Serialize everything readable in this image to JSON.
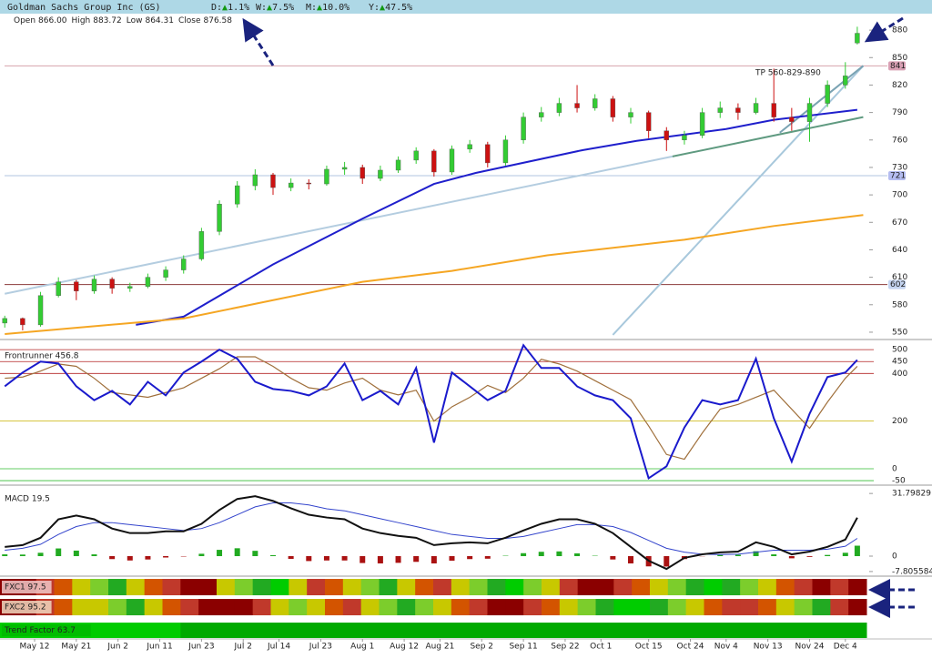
{
  "header": {
    "title": "Goldman Sachs Group Inc (GS)",
    "changes": [
      {
        "label": "D:",
        "arrow": "▲",
        "value": "1.1%"
      },
      {
        "label": "W:",
        "arrow": "▲",
        "value": "7.5%"
      },
      {
        "label": "M:",
        "arrow": "▲",
        "value": "10.0%"
      },
      {
        "label": "Y:",
        "arrow": "▲",
        "value": "47.5%"
      }
    ],
    "quote": [
      {
        "label": "Open",
        "value": "866.00"
      },
      {
        "label": "High",
        "value": "883.72"
      },
      {
        "label": "Low",
        "value": "864.31"
      },
      {
        "label": "Close",
        "value": "876.58"
      }
    ]
  },
  "chart_data": [
    {
      "type": "candlestick",
      "x": [
        0,
        3,
        6,
        9,
        12,
        15,
        18,
        21,
        24,
        27,
        30,
        33,
        36,
        39,
        42,
        45,
        48,
        51,
        54,
        57,
        60,
        63,
        66,
        69,
        72,
        75,
        78,
        81,
        84,
        87,
        90,
        93,
        96,
        99,
        102,
        105,
        108,
        111,
        114,
        117,
        120,
        123,
        126,
        129,
        132,
        135,
        138,
        141,
        143
      ],
      "open": [
        560,
        565,
        558,
        590,
        605,
        595,
        608,
        598,
        600,
        610,
        618,
        630,
        660,
        690,
        710,
        722,
        708,
        713,
        712,
        728,
        730,
        718,
        727,
        738,
        748,
        725,
        750,
        755,
        735,
        760,
        785,
        790,
        800,
        795,
        805,
        785,
        790,
        770,
        760,
        765,
        790,
        795,
        790,
        800,
        785,
        780,
        800,
        820,
        866.0
      ],
      "high": [
        568,
        566,
        594,
        610,
        607,
        612,
        610,
        604,
        614,
        622,
        634,
        664,
        694,
        715,
        728,
        724,
        718,
        717,
        732,
        736,
        733,
        732,
        742,
        752,
        750,
        754,
        760,
        758,
        765,
        790,
        796,
        806,
        820,
        810,
        808,
        795,
        792,
        774,
        770,
        795,
        802,
        800,
        806,
        838,
        795,
        806,
        825,
        845,
        883.72
      ],
      "low": [
        555,
        552,
        556,
        588,
        585,
        592,
        592,
        594,
        598,
        606,
        614,
        628,
        656,
        686,
        705,
        700,
        704,
        706,
        710,
        722,
        712,
        715,
        724,
        734,
        720,
        722,
        746,
        730,
        732,
        756,
        780,
        786,
        790,
        792,
        780,
        778,
        762,
        748,
        755,
        762,
        784,
        782,
        788,
        780,
        770,
        758,
        796,
        816,
        864.31
      ],
      "close": [
        565,
        558,
        590,
        605,
        595,
        608,
        598,
        600,
        610,
        618,
        630,
        660,
        690,
        710,
        722,
        708,
        713,
        712,
        728,
        730,
        718,
        727,
        738,
        748,
        725,
        750,
        755,
        735,
        760,
        785,
        790,
        800,
        795,
        805,
        785,
        790,
        770,
        760,
        765,
        790,
        795,
        790,
        800,
        785,
        780,
        800,
        820,
        830,
        876.58
      ],
      "up_color": "#33cc33",
      "down_color": "#cc1111",
      "xlim": [
        -0.8,
        145
      ],
      "ylim": [
        543,
        898
      ],
      "yticks": [
        550,
        580,
        610,
        640,
        670,
        700,
        730,
        760,
        790,
        820,
        850,
        880
      ],
      "xticks": [
        {
          "value": 5,
          "label": "May 12"
        },
        {
          "value": 12,
          "label": "May 21"
        },
        {
          "value": 19,
          "label": "Jun 2"
        },
        {
          "value": 26,
          "label": "Jun 11"
        },
        {
          "value": 33,
          "label": "Jun 23"
        },
        {
          "value": 40,
          "label": "Jul 2"
        },
        {
          "value": 46,
          "label": "Jul 14"
        },
        {
          "value": 53,
          "label": "Jul 23"
        },
        {
          "value": 60,
          "label": "Aug 1"
        },
        {
          "value": 67,
          "label": "Aug 12"
        },
        {
          "value": 73,
          "label": "Aug 21"
        },
        {
          "value": 80,
          "label": "Sep 2"
        },
        {
          "value": 87,
          "label": "Sep 11"
        },
        {
          "value": 94,
          "label": "Sep 22"
        },
        {
          "value": 100,
          "label": "Oct 1"
        },
        {
          "value": 108,
          "label": "Oct 15"
        },
        {
          "value": 115,
          "label": "Oct 24"
        },
        {
          "value": 121,
          "label": "Nov 4"
        },
        {
          "value": 128,
          "label": "Nov 13"
        },
        {
          "value": 135,
          "label": "Nov 24"
        },
        {
          "value": 141,
          "label": "Dec 4"
        }
      ],
      "lines": [
        {
          "color": "#1f1fcc",
          "x": [
            22,
            30,
            45,
            60,
            72,
            79,
            97,
            106,
            121,
            129,
            143
          ],
          "values": [
            558,
            567,
            624,
            674,
            712,
            724,
            749,
            759,
            772,
            782,
            793
          ]
        },
        {
          "color": "#f5a623",
          "x": [
            0,
            30,
            60,
            75,
            91,
            114,
            129,
            144
          ],
          "values": [
            548,
            565,
            605,
            617,
            634,
            651,
            666,
            678
          ]
        }
      ],
      "trendlines": [
        {
          "color": "#b4cde0",
          "x": [
            0,
            112
          ],
          "values": [
            592,
            742
          ]
        },
        {
          "color": "#a8c8dc",
          "x": [
            102,
            144
          ],
          "values": [
            547,
            841
          ]
        },
        {
          "color": "#5f9a80",
          "x": [
            112,
            144
          ],
          "values": [
            742,
            785
          ]
        },
        {
          "color": "#7aa3b3",
          "x": [
            130,
            144
          ],
          "values": [
            768,
            841
          ]
        }
      ],
      "levels": [
        {
          "value": 841,
          "color": "#d6a3ab",
          "box": "#d9a0b4"
        },
        {
          "value": 721,
          "color": "#b0c6e2",
          "box": "#b4bcf0"
        },
        {
          "value": 602,
          "color": "#8b3a3a",
          "box": "#c4d4f0"
        }
      ],
      "annotation": "TP 560-829-890"
    },
    {
      "type": "line",
      "title": "Frontrunner 456.8",
      "series": [
        {
          "color": "#1a1acc",
          "values": [
            346,
            404,
            450,
            442,
            346,
            288,
            327,
            270,
            365,
            308,
            404,
            450,
            500,
            462,
            365,
            335,
            327,
            308,
            346,
            442,
            288,
            327,
            270,
            423,
            110,
            404,
            346,
            288,
            327,
            519,
            423,
            423,
            346,
            308,
            288,
            212,
            -40,
            10,
            173,
            288,
            270,
            288,
            462,
            212,
            30,
            231,
            385,
            404,
            456.8
          ]
        },
        {
          "color": "#a0703c",
          "values": [
            380,
            385,
            410,
            440,
            430,
            380,
            320,
            310,
            300,
            320,
            340,
            380,
            420,
            470,
            470,
            430,
            380,
            340,
            330,
            360,
            380,
            330,
            310,
            330,
            200,
            260,
            300,
            350,
            320,
            380,
            460,
            440,
            410,
            370,
            330,
            290,
            180,
            60,
            40,
            150,
            250,
            270,
            300,
            330,
            250,
            170,
            280,
            380,
            430
          ]
        }
      ],
      "ylim": [
        -65,
        535
      ],
      "yticks": [
        500,
        450,
        400,
        200,
        0,
        -50
      ],
      "tick_colors": [
        "#b22222",
        "#b22222",
        "#b22222",
        "#c8b400",
        "#33bb33",
        "#33bb33"
      ]
    },
    {
      "type": "macd",
      "title": "MACD 19.5",
      "series": [
        {
          "color": "#111111",
          "values": [
            4.7,
            5.6,
            9.3,
            18.7,
            20.6,
            18.7,
            14,
            11.7,
            11.7,
            12.6,
            12.6,
            16.4,
            23.4,
            29,
            30.4,
            28,
            24.3,
            21,
            19.6,
            18.7,
            14,
            11.7,
            10.3,
            9.3,
            5.6,
            6.5,
            7,
            6.5,
            9.3,
            13,
            16.4,
            18.7,
            18.7,
            16.4,
            11.7,
            4.7,
            -2.3,
            -6.5,
            -0.9,
            0.9,
            1.9,
            2.3,
            7,
            4.7,
            0.9,
            2.3,
            4.7,
            8.4,
            19.5
          ]
        },
        {
          "color": "#3344cc",
          "values": [
            3,
            4,
            6,
            11,
            15,
            17,
            17,
            16,
            15,
            14,
            13,
            14,
            17,
            21,
            25,
            27,
            27,
            26,
            24,
            23,
            21,
            19,
            17,
            15,
            13,
            11,
            10,
            9,
            9,
            10,
            12,
            14,
            16,
            16,
            15,
            12,
            8,
            4,
            2,
            1,
            0.8,
            1,
            2,
            3,
            3,
            3,
            3.5,
            5,
            9
          ]
        }
      ],
      "histogram": {
        "up_color": "#22aa22",
        "down_color": "#aa1111",
        "values": [
          0.9,
          0.8,
          1.7,
          3.9,
          2.8,
          0.9,
          -1.5,
          -2.2,
          -1.7,
          -0.7,
          -0.2,
          1.2,
          3.2,
          4,
          2.7,
          0.5,
          -1.4,
          -2.5,
          -2.2,
          -2.2,
          -3.5,
          -3.7,
          -3.4,
          -2.9,
          -3.7,
          -2.3,
          -1.5,
          -1.3,
          0.2,
          1.5,
          2.2,
          2.4,
          1.4,
          0.2,
          -1.7,
          -3.7,
          -5.2,
          -5.3,
          -1.5,
          -0.1,
          0.6,
          0.7,
          2.5,
          0.9,
          -1.1,
          -0.4,
          0.6,
          1.7,
          5.3
        ]
      },
      "ylim": [
        -9.7,
        35.1
      ],
      "yticks": [
        31.79829,
        0,
        -7.805584
      ]
    },
    {
      "type": "heatmap",
      "rows": [
        {
          "title": "FXC1 97.5",
          "label_color": "#f0c8c8",
          "colors": [
            "#8b0000",
            "#8b0000",
            "#c0392b",
            "#d35400",
            "#c8c800",
            "#7ccd2c",
            "#22aa22",
            "#c8c800",
            "#d35400",
            "#c0392b",
            "#8b0000",
            "#8b0000",
            "#c8c800",
            "#7ccd2c",
            "#22aa22",
            "#00cc00",
            "#c8c800",
            "#c0392b",
            "#d35400",
            "#c8c800",
            "#7ccd2c",
            "#22aa22",
            "#c8c800",
            "#d35400",
            "#c0392b",
            "#c8c800",
            "#7ccd2c",
            "#22aa22",
            "#00cc00",
            "#7ccd2c",
            "#c8c800",
            "#c0392b",
            "#8b0000",
            "#8b0000",
            "#c0392b",
            "#d35400",
            "#c8c800",
            "#7ccd2c",
            "#22aa22",
            "#00cc00",
            "#22aa22",
            "#7ccd2c",
            "#c8c800",
            "#d35400",
            "#c0392b",
            "#8b0000",
            "#c0392b",
            "#8b0000"
          ]
        },
        {
          "title": "FXC2 95.2",
          "label_color": "#f0d8c0",
          "colors": [
            "#8b0000",
            "#8b0000",
            "#c0392b",
            "#d35400",
            "#c8c800",
            "#c8c800",
            "#7ccd2c",
            "#22aa22",
            "#c8c800",
            "#d35400",
            "#c0392b",
            "#8b0000",
            "#8b0000",
            "#8b0000",
            "#c0392b",
            "#c8c800",
            "#7ccd2c",
            "#c8c800",
            "#d35400",
            "#c0392b",
            "#c8c800",
            "#7ccd2c",
            "#22aa22",
            "#7ccd2c",
            "#c8c800",
            "#d35400",
            "#c0392b",
            "#8b0000",
            "#8b0000",
            "#c0392b",
            "#d35400",
            "#c8c800",
            "#7ccd2c",
            "#22aa22",
            "#00cc00",
            "#00cc00",
            "#22aa22",
            "#7ccd2c",
            "#c8c800",
            "#d35400",
            "#c0392b",
            "#c0392b",
            "#d35400",
            "#c8c800",
            "#7ccd2c",
            "#22aa22",
            "#c0392b",
            "#8b0000"
          ]
        },
        {
          "title": "Trend Factor 63.7",
          "label_color": "#00b800",
          "colors": [
            "#00cc00",
            "#00cc00",
            "#00cc00",
            "#00cc00",
            "#00cc00",
            "#00cc00",
            "#00cc00",
            "#00cc00",
            "#00cc00",
            "#00cc00",
            "#00aa00",
            "#00aa00",
            "#00aa00",
            "#00aa00",
            "#00aa00",
            "#00aa00",
            "#00aa00",
            "#00aa00",
            "#00aa00",
            "#00aa00",
            "#00aa00",
            "#00aa00",
            "#00aa00",
            "#00aa00",
            "#00aa00",
            "#00aa00",
            "#00aa00",
            "#00aa00",
            "#00aa00",
            "#00aa00",
            "#00aa00",
            "#00aa00",
            "#00aa00",
            "#00aa00",
            "#00aa00",
            "#00aa00",
            "#00aa00",
            "#00aa00",
            "#00aa00",
            "#00aa00",
            "#00aa00",
            "#00aa00",
            "#00aa00",
            "#00aa00",
            "#00aa00",
            "#00aa00",
            "#00aa00",
            "#00aa00"
          ]
        }
      ]
    }
  ]
}
